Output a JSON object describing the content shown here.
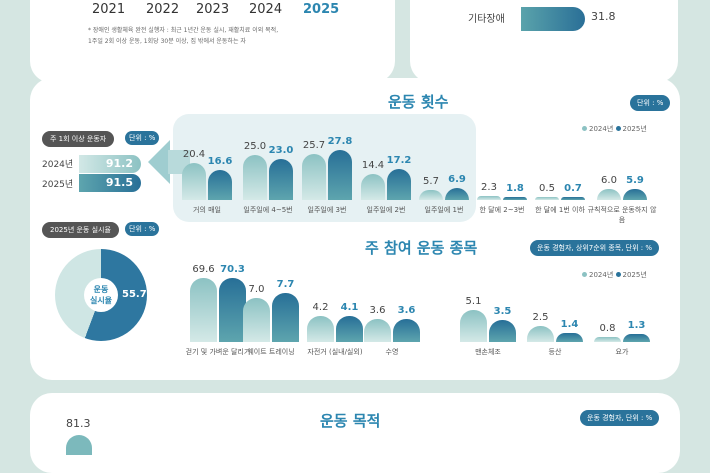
{
  "top_left": {
    "years": [
      "2021",
      "2022",
      "2023",
      "2024",
      "2025"
    ],
    "note_lines": [
      "* 장애인 생활체육 완전 실행자 : 최근 1년간 운동 실시, 재활치료 이외 목적,",
      "1주일 2회 이상 운동, 1회당 30분 이상, 집 밖에서 운동하는 자"
    ]
  },
  "top_right": {
    "label": "기타장애",
    "value": "31.8"
  },
  "freq": {
    "title": "운동 횟수",
    "unit": "단위 : %",
    "legend": [
      "2024년",
      "2025년"
    ],
    "weekly_pill": "주 1회 이상 운동자",
    "weekly_unit": "단위 : %",
    "weekly": [
      {
        "year": "2024년",
        "value": "91.2"
      },
      {
        "year": "2025년",
        "value": "91.5"
      }
    ]
  },
  "donut": {
    "pill": "2025년 운동 실시율",
    "unit": "단위 : %",
    "center": "운동\n실시율",
    "value": 55.7,
    "label": "55.7"
  },
  "sports": {
    "title": "주 참여 운동 종목",
    "unit": "운동 경험자, 상위7순위 종목, 단위 : %",
    "legend": [
      "2024년",
      "2025년"
    ]
  },
  "purpose": {
    "title": "운동 목적",
    "unit": "운동 경험자, 단위 : %",
    "first_value": "81.3"
  },
  "chart_data": [
    {
      "type": "bar",
      "title": "운동 횟수",
      "categories": [
        "거의 매일",
        "일주일에 4~5번",
        "일주일에 3번",
        "일주일에 2번",
        "일주일에 1번",
        "한 달에 2~3번",
        "한 달에 1번 이하",
        "규칙적으로 운동하지 않음"
      ],
      "series": [
        {
          "name": "2024년",
          "values": [
            20.4,
            25.0,
            25.7,
            14.4,
            5.7,
            2.3,
            0.5,
            6.0
          ]
        },
        {
          "name": "2025년",
          "values": [
            16.6,
            23.0,
            27.8,
            17.2,
            6.9,
            1.8,
            0.7,
            5.9
          ]
        }
      ],
      "ylabel": "%"
    },
    {
      "type": "bar",
      "title": "주 참여 운동 종목",
      "categories": [
        "걷기 및 가벼운 달리기",
        "웨이트 트레이닝",
        "자전거 (실내/실외)",
        "수영",
        "맨손체조",
        "등산",
        "요가"
      ],
      "series": [
        {
          "name": "2024년",
          "values": [
            69.6,
            7.0,
            4.2,
            3.6,
            5.1,
            2.5,
            0.8
          ]
        },
        {
          "name": "2025년",
          "values": [
            70.3,
            7.7,
            4.1,
            3.6,
            3.5,
            1.4,
            1.3
          ]
        }
      ],
      "ylabel": "%"
    }
  ]
}
